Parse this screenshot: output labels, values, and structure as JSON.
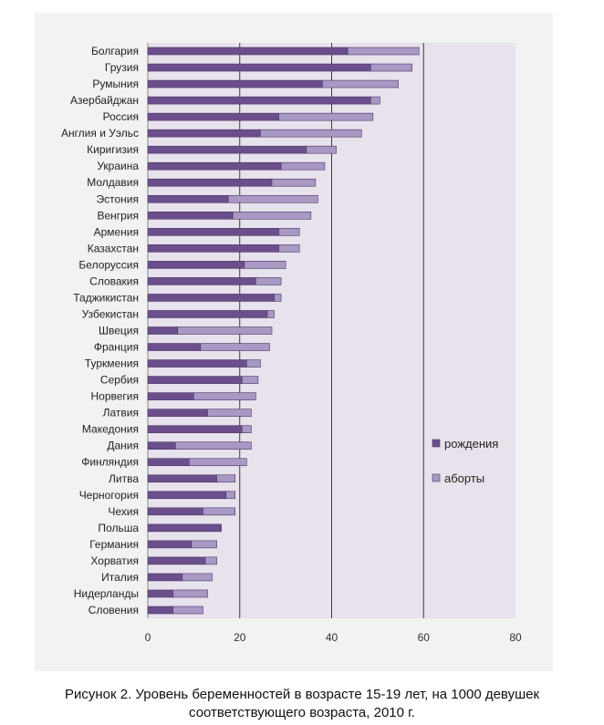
{
  "colors": {
    "births": "#6b4f8c",
    "abortions": "#a899c4",
    "plot_background": "#e8e2ec",
    "panel_background": "#f2f2f2",
    "gridline": "#3a3a3a"
  },
  "caption": {
    "line1": "Рисунок 2. Уровень беременностей в возрасте 15-19 лет, на 1000 девушек",
    "line2": "соответствующего возраста, 2010 г."
  },
  "chart_data": {
    "type": "bar",
    "orientation": "horizontal",
    "stacked": true,
    "categories": [
      "Болгария",
      "Грузия",
      "Румыния",
      "Азербайджан",
      "Россия",
      "Англия и Уэльс",
      "Киригизия",
      "Украина",
      "Молдавия",
      "Эстония",
      "Венгрия",
      "Армения",
      "Казахстан",
      "Белоруссия",
      "Словакия",
      "Таджикистан",
      "Узбекистан",
      "Швеция",
      "Франция",
      "Туркмения",
      "Сербия",
      "Норвегия",
      "Латвия",
      "Македония",
      "Дания",
      "Финляндия",
      "Литва",
      "Черногория",
      "Чехия",
      "Польша",
      "Германия",
      "Хорватия",
      "Италия",
      "Нидерланды",
      "Словения"
    ],
    "series": [
      {
        "name": "рождения",
        "values": [
          43.5,
          48.5,
          38,
          48.5,
          28.5,
          24.5,
          34.5,
          29,
          27,
          17.5,
          18.5,
          28.5,
          28.5,
          21,
          23.5,
          27.5,
          26,
          6.5,
          11.5,
          21.5,
          20.5,
          10,
          13,
          20.5,
          6,
          9,
          15,
          17,
          12,
          16,
          9.5,
          12.5,
          7.5,
          5.5,
          5.5
        ]
      },
      {
        "name": "аборты",
        "values": [
          15.5,
          9,
          16.5,
          2,
          20.5,
          22,
          6.5,
          9.5,
          9.5,
          19.5,
          17,
          4.5,
          4.5,
          9,
          5.5,
          1.5,
          1.5,
          20.5,
          15,
          3,
          3.5,
          13.5,
          9.5,
          2,
          16.5,
          12.5,
          4,
          2,
          7,
          0,
          5.5,
          2.5,
          6.5,
          7.5,
          6.5
        ]
      }
    ],
    "xlim": [
      0,
      80
    ],
    "xticks": [
      "0",
      "20",
      "40",
      "60",
      "80"
    ],
    "grid": "vertical",
    "legend_position": "right",
    "title": "",
    "xlabel": "",
    "ylabel": ""
  }
}
